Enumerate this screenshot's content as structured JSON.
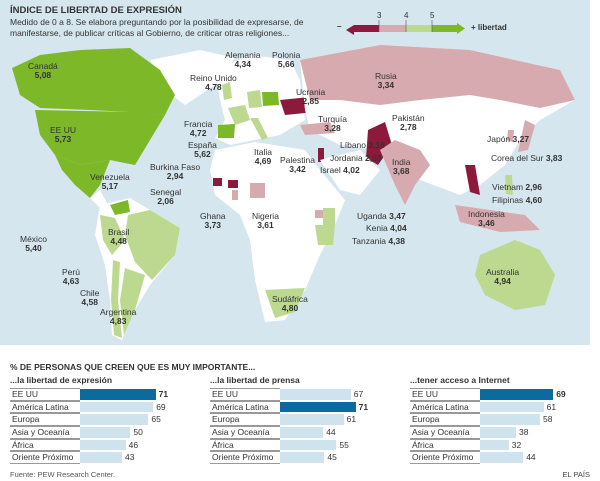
{
  "header": {
    "title": "ÍNDICE DE LIBERTAD DE EXPRESIÓN",
    "subtitle": "Medido de 0 a 8. Se elabora preguntando por la posibilidad de expresarse, de manifestarse, de publicar críticas al Gobierno, de criticar otras religiones..."
  },
  "legend": {
    "minus": "–",
    "plus": "+ libertad",
    "ticks": [
      "3",
      "4",
      "5"
    ],
    "colors": [
      "#8b1a3c",
      "#d6aaae",
      "#bcd98f",
      "#7db828"
    ]
  },
  "map_colors": {
    "ocean": "#d5e6ee",
    "land": "#ffffff",
    "very_low": "#8b1a3c",
    "low": "#d6aaae",
    "mid": "#bcd98f",
    "high": "#7db828"
  },
  "countries": [
    {
      "name": "Canadá",
      "value": "5,08"
    },
    {
      "name": "EE UU",
      "value": "5,73"
    },
    {
      "name": "México",
      "value": "5,40"
    },
    {
      "name": "Venezuela",
      "value": "5,17"
    },
    {
      "name": "Perú",
      "value": "4,63"
    },
    {
      "name": "Brasil",
      "value": "4,48"
    },
    {
      "name": "Chile",
      "value": "4,58"
    },
    {
      "name": "Argentina",
      "value": "4,83"
    },
    {
      "name": "Reino Unido",
      "value": "4,78"
    },
    {
      "name": "Francia",
      "value": "4,72"
    },
    {
      "name": "España",
      "value": "5,62"
    },
    {
      "name": "Italia",
      "value": "4,69"
    },
    {
      "name": "Alemania",
      "value": "4,34"
    },
    {
      "name": "Polonia",
      "value": "5,66"
    },
    {
      "name": "Rusia",
      "value": "3,34"
    },
    {
      "name": "Ucrania",
      "value": "2,85"
    },
    {
      "name": "Turquía",
      "value": "3,28"
    },
    {
      "name": "Pakistán",
      "value": "2,78"
    },
    {
      "name": "Líbano",
      "value": "3,16"
    },
    {
      "name": "Jordania",
      "value": "2,53"
    },
    {
      "name": "Israel",
      "value": "4,02"
    },
    {
      "name": "Palestina",
      "value": "3,42"
    },
    {
      "name": "India",
      "value": "3,68"
    },
    {
      "name": "Japón",
      "value": "3,27"
    },
    {
      "name": "Corea del Sur",
      "value": "3,83"
    },
    {
      "name": "Vietnam",
      "value": "2,96"
    },
    {
      "name": "Filipinas",
      "value": "4,60"
    },
    {
      "name": "Indonesia",
      "value": "3,46"
    },
    {
      "name": "Australia",
      "value": "4,94"
    },
    {
      "name": "Burkina Faso",
      "value": "2,94"
    },
    {
      "name": "Senegal",
      "value": "2,06"
    },
    {
      "name": "Ghana",
      "value": "3,73"
    },
    {
      "name": "Nigeria",
      "value": "3,61"
    },
    {
      "name": "Uganda",
      "value": "3,47"
    },
    {
      "name": "Kenia",
      "value": "4,04"
    },
    {
      "name": "Tanzania",
      "value": "4,38"
    },
    {
      "name": "Sudáfrica",
      "value": "4,80"
    }
  ],
  "charts_title": "% DE PERSONAS QUE CREEN QUE ES MUY IMPORTANTE...",
  "chart_data": [
    {
      "type": "bar",
      "orientation": "horizontal",
      "title": "...la libertad de expresión",
      "categories": [
        "EE UU",
        "América Latina",
        "Europa",
        "Asia y Oceanía",
        "África",
        "Oriente Próximo"
      ],
      "values": [
        71,
        69,
        65,
        50,
        46,
        43
      ],
      "highlight": "EE UU"
    },
    {
      "type": "bar",
      "orientation": "horizontal",
      "title": "...la libertad de prensa",
      "categories": [
        "EE UU",
        "América Latina",
        "Europa",
        "Asia y Oceanía",
        "África",
        "Oriente Próximo"
      ],
      "values": [
        67,
        71,
        61,
        44,
        55,
        45
      ],
      "highlight": "América Latina"
    },
    {
      "type": "bar",
      "orientation": "horizontal",
      "title": "...tener acceso a Internet",
      "categories": [
        "EE UU",
        "América Latina",
        "Europa",
        "Asia y Oceanía",
        "África",
        "Oriente Próximo"
      ],
      "values": [
        69,
        61,
        58,
        38,
        32,
        44
      ],
      "highlight": "EE UU"
    }
  ],
  "bar_colors": {
    "normal": "#cfe3ee",
    "highlight": "#0b6a9f"
  },
  "footer": {
    "source": "Fuente: PEW Research Center.",
    "brand": "EL PAÍS"
  }
}
